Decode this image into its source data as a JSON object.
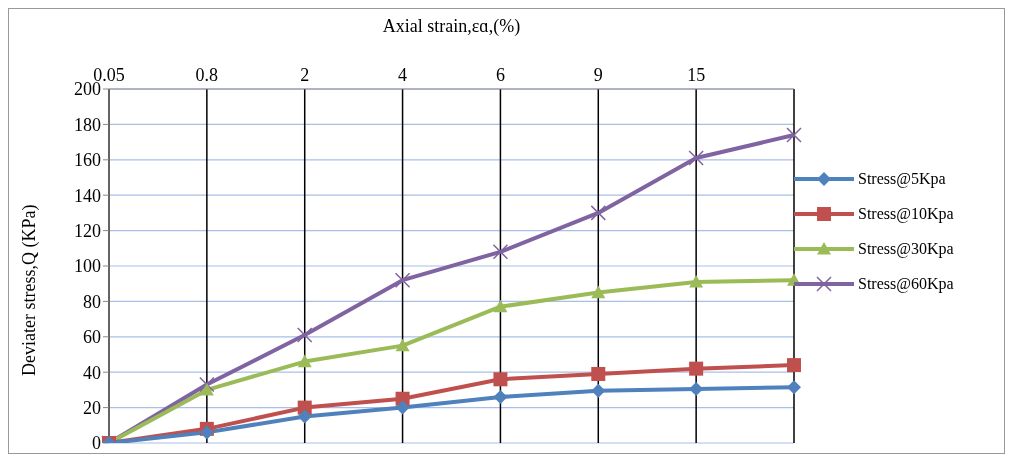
{
  "chart_data": {
    "type": "line",
    "xlabel": "Axial strain,ɛɑ,(%)",
    "ylabel": "Deviater stress,Q (KPa)",
    "categories": [
      "0.05",
      "0.8",
      "2",
      "4",
      "6",
      "9",
      "15",
      null
    ],
    "series": [
      {
        "name": "Stress@5Kpa",
        "color": "#4f81bd",
        "marker": "diamond",
        "values": [
          0,
          6,
          15,
          20,
          26,
          29.5,
          30.5,
          31.5
        ]
      },
      {
        "name": "Stress@10Kpa",
        "color": "#c0504d",
        "marker": "square",
        "values": [
          0,
          8,
          20,
          25,
          36,
          39,
          42,
          44
        ]
      },
      {
        "name": "Stress@30Kpa",
        "color": "#9bbb59",
        "marker": "triangle",
        "values": [
          0,
          30,
          46,
          55,
          77,
          85,
          91,
          92
        ]
      },
      {
        "name": "Stress@60Kpa",
        "color": "#8064a2",
        "marker": "cross",
        "values": [
          0,
          33,
          61,
          92,
          108,
          130,
          161,
          174
        ]
      }
    ],
    "ylim": [
      0,
      200
    ],
    "yticks": [
      0,
      20,
      40,
      60,
      80,
      100,
      120,
      140,
      160,
      180,
      200
    ],
    "grid": true,
    "legend": "right"
  }
}
